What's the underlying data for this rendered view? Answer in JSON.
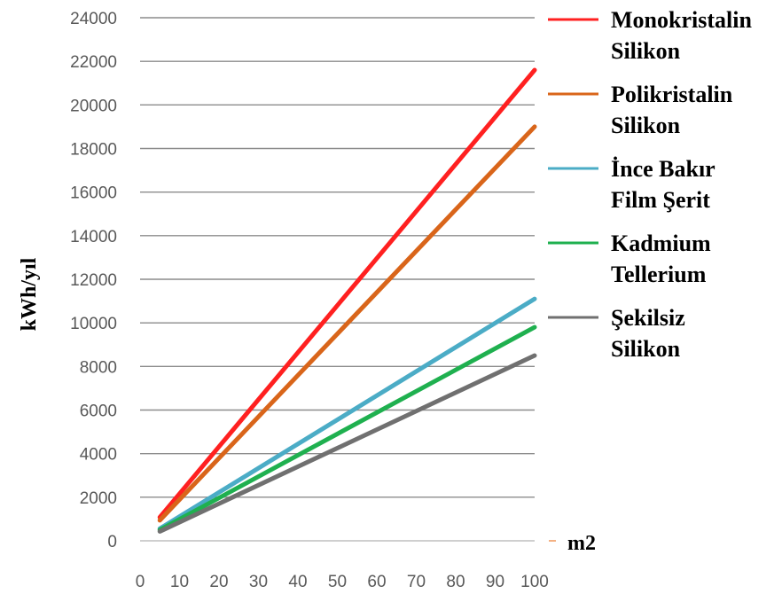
{
  "chart_data": {
    "type": "line",
    "ylabel": "kWh/yıl",
    "xunit": "m2",
    "x": [
      5,
      100
    ],
    "xticks": [
      0,
      10,
      20,
      30,
      40,
      50,
      60,
      70,
      80,
      90,
      100
    ],
    "yticks": [
      0,
      2000,
      4000,
      6000,
      8000,
      10000,
      12000,
      14000,
      16000,
      18000,
      20000,
      22000,
      24000
    ],
    "xlim": [
      0,
      100
    ],
    "ylim": [
      0,
      24000
    ],
    "grid": "horizontal",
    "legend_position": "right",
    "series": [
      {
        "name_lines": [
          "Monokristalin",
          "Silikon"
        ],
        "color": "#ff2020",
        "values": [
          1080,
          21600
        ]
      },
      {
        "name_lines": [
          "Polikristalin",
          "Silikon"
        ],
        "color": "#d9651a",
        "values": [
          940,
          19000
        ]
      },
      {
        "name_lines": [
          "İnce Bakır",
          "Film Şerit"
        ],
        "color": "#4bacc6",
        "values": [
          560,
          11100
        ]
      },
      {
        "name_lines": [
          "Kadmium",
          "Tellerium"
        ],
        "color": "#1fb04f",
        "values": [
          500,
          9800
        ]
      },
      {
        "name_lines": [
          "Şekilsiz",
          "Silikon"
        ],
        "color": "#707070",
        "values": [
          430,
          8500
        ]
      }
    ]
  }
}
